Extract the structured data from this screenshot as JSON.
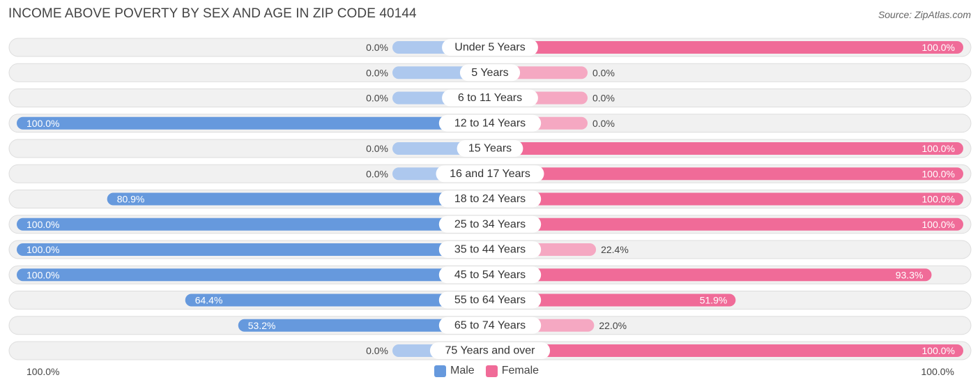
{
  "title": "INCOME ABOVE POVERTY BY SEX AND AGE IN ZIP CODE 40144",
  "source": "Source: ZipAtlas.com",
  "colors": {
    "male_strong": "#6699dd",
    "male_light": "#adc8ee",
    "female_strong": "#f06b98",
    "female_light": "#f5a8c2",
    "row_bg": "#f1f1f1",
    "row_border": "#dddddd"
  },
  "legend": {
    "male": "Male",
    "female": "Female"
  },
  "axis": {
    "left_label": "100.0%",
    "right_label": "100.0%"
  },
  "chart_data": {
    "type": "bar",
    "orientation": "horizontal-diverging",
    "title": "INCOME ABOVE POVERTY BY SEX AND AGE IN ZIP CODE 40144",
    "xlim": [
      -100,
      100
    ],
    "categories": [
      "Under 5 Years",
      "5 Years",
      "6 to 11 Years",
      "12 to 14 Years",
      "15 Years",
      "16 and 17 Years",
      "18 to 24 Years",
      "25 to 34 Years",
      "35 to 44 Years",
      "45 to 54 Years",
      "55 to 64 Years",
      "65 to 74 Years",
      "75 Years and over"
    ],
    "series": [
      {
        "name": "Male",
        "values": [
          0.0,
          0.0,
          0.0,
          100.0,
          0.0,
          0.0,
          80.9,
          100.0,
          100.0,
          100.0,
          64.4,
          53.2,
          0.0
        ],
        "labels": [
          "0.0%",
          "0.0%",
          "0.0%",
          "100.0%",
          "0.0%",
          "0.0%",
          "80.9%",
          "100.0%",
          "100.0%",
          "100.0%",
          "64.4%",
          "53.2%",
          "0.0%"
        ]
      },
      {
        "name": "Female",
        "values": [
          100.0,
          0.0,
          0.0,
          0.0,
          100.0,
          100.0,
          100.0,
          100.0,
          22.4,
          93.3,
          51.9,
          22.0,
          100.0
        ],
        "labels": [
          "100.0%",
          "0.0%",
          "0.0%",
          "0.0%",
          "100.0%",
          "100.0%",
          "100.0%",
          "100.0%",
          "22.4%",
          "93.3%",
          "51.9%",
          "22.0%",
          "100.0%"
        ]
      }
    ]
  }
}
